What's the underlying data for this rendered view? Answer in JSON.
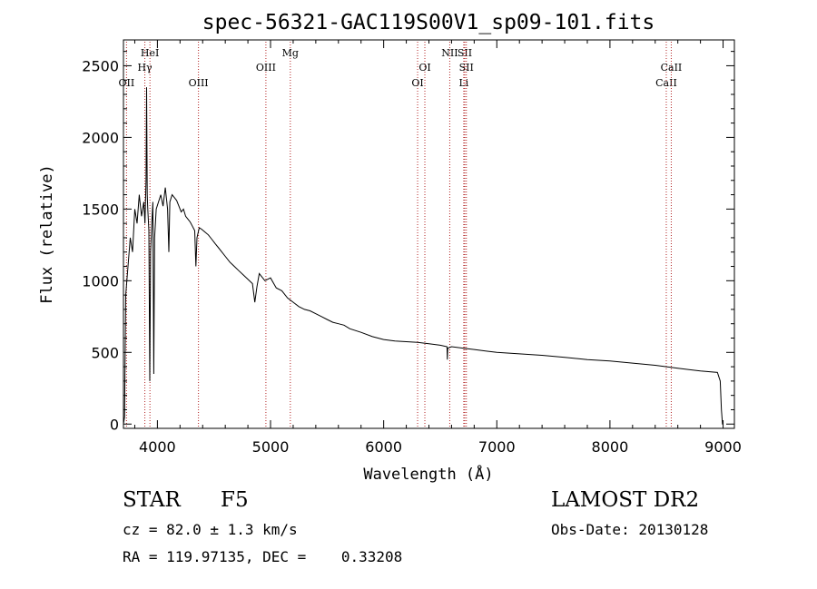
{
  "chart_data": {
    "type": "line",
    "title": "spec-56321-GAC119S00V1_sp09-101.fits",
    "xlabel": "Wavelength (Å)",
    "ylabel": "Flux (relative)",
    "xlim": [
      3700,
      9100
    ],
    "ylim": [
      -30,
      2680
    ],
    "xticks": [
      4000,
      5000,
      6000,
      7000,
      8000,
      9000
    ],
    "yticks": [
      0,
      500,
      1000,
      1500,
      2000,
      2500
    ],
    "grid": false,
    "line_color": "#000000",
    "marker_color": "#b22222",
    "series": [
      {
        "x": [
          3700,
          3710,
          3720,
          3740,
          3760,
          3780,
          3800,
          3820,
          3840,
          3860,
          3880,
          3890,
          3900,
          3905,
          3910,
          3915,
          3925,
          3933,
          3940,
          3950,
          3960,
          3968,
          3975,
          3990,
          4010,
          4030,
          4050,
          4070,
          4090,
          4101,
          4110,
          4130,
          4150,
          4170,
          4190,
          4210,
          4230,
          4250,
          4270,
          4290,
          4310,
          4330,
          4340,
          4350,
          4370,
          4390,
          4420,
          4450,
          4480,
          4510,
          4540,
          4570,
          4600,
          4640,
          4680,
          4720,
          4760,
          4800,
          4840,
          4861,
          4880,
          4900,
          4950,
          5000,
          5050,
          5100,
          5150,
          5200,
          5250,
          5300,
          5350,
          5400,
          5450,
          5500,
          5550,
          5600,
          5650,
          5700,
          5800,
          5900,
          6000,
          6100,
          6200,
          6300,
          6400,
          6500,
          6560,
          6563,
          6566,
          6600,
          6700,
          6800,
          6900,
          7000,
          7200,
          7400,
          7600,
          7800,
          8000,
          8200,
          8400,
          8600,
          8800,
          8950,
          8975,
          8985,
          8995,
          9000
        ],
        "y": [
          0,
          50,
          900,
          1100,
          1300,
          1200,
          1500,
          1400,
          1600,
          1450,
          1550,
          1400,
          1700,
          2350,
          1600,
          1500,
          1350,
          300,
          1200,
          1400,
          1550,
          350,
          1300,
          1500,
          1550,
          1600,
          1520,
          1650,
          1500,
          1200,
          1550,
          1600,
          1580,
          1560,
          1520,
          1480,
          1500,
          1450,
          1430,
          1410,
          1380,
          1350,
          1100,
          1300,
          1370,
          1360,
          1340,
          1320,
          1290,
          1260,
          1230,
          1200,
          1170,
          1130,
          1100,
          1070,
          1040,
          1010,
          980,
          850,
          960,
          1050,
          1000,
          1020,
          950,
          930,
          880,
          850,
          820,
          800,
          790,
          770,
          750,
          730,
          710,
          700,
          690,
          665,
          640,
          610,
          590,
          580,
          575,
          570,
          560,
          550,
          540,
          450,
          530,
          540,
          530,
          520,
          510,
          500,
          490,
          480,
          465,
          450,
          440,
          425,
          410,
          390,
          370,
          360,
          300,
          100,
          0,
          0
        ]
      }
    ],
    "line_markers": [
      {
        "x": 3727,
        "top": "OII",
        "row": 3
      },
      {
        "x": 3889,
        "top": "Hγ",
        "row": 2
      },
      {
        "x": 3934,
        "top": "HeI",
        "row": 1
      },
      {
        "x": 4363,
        "top": "OIII",
        "row": 3
      },
      {
        "x": 4959,
        "top": "OIII",
        "row": 2
      },
      {
        "x": 5175,
        "top": "Mg",
        "row": 1
      },
      {
        "x": 6300,
        "top": "OI",
        "row": 3
      },
      {
        "x": 6364,
        "top": "OI",
        "row": 2
      },
      {
        "x": 6584,
        "top": "NII",
        "row": 1
      },
      {
        "x": 6708,
        "top": "Li",
        "row": 3
      },
      {
        "x": 6717,
        "top": "SII",
        "row": 1
      },
      {
        "x": 6731,
        "top": "SII",
        "row": 2
      },
      {
        "x": 8498,
        "top": "CaII",
        "row": 3
      },
      {
        "x": 8542,
        "top": "CaII",
        "row": 2
      }
    ]
  },
  "info": {
    "class_label": "STAR",
    "subclass": "F5",
    "survey": "LAMOST DR2",
    "cz": "cz = 82.0 ± 1.3 km/s",
    "obs_date": "Obs-Date: 20130128",
    "radec": "RA = 119.97135, DEC =    0.33208"
  }
}
